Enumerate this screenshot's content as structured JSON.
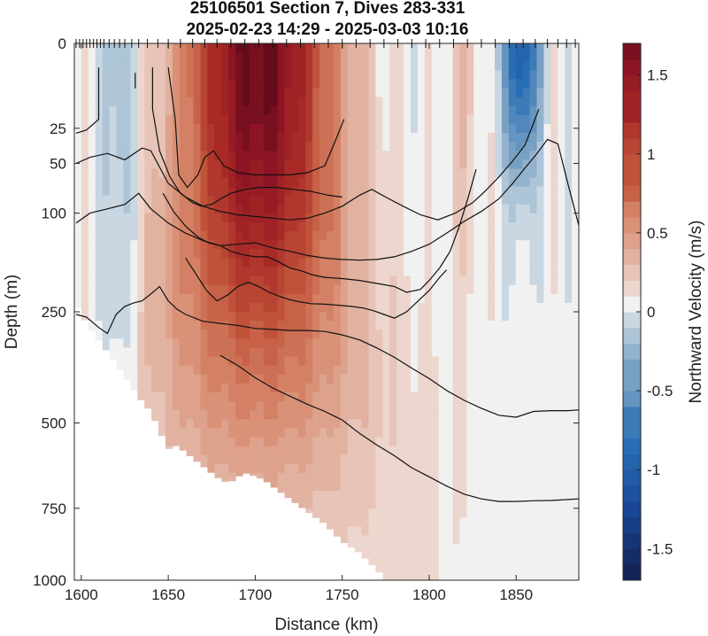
{
  "chart_data": {
    "type": "heatmap",
    "title": "25106501 Section 7, Dives 283-331",
    "subtitle": "2025-02-23 14:29 - 2025-03-03 10:16",
    "xlabel": "Distance (km)",
    "ylabel": "Depth (m)",
    "colorbar_label": "Northward Velocity (m/s)",
    "xlim": [
      1596,
      1886
    ],
    "x_ticks": [
      1600,
      1650,
      1700,
      1750,
      1800,
      1850
    ],
    "x_tick_labels": [
      "1600",
      "1650",
      "1700",
      "1750",
      "1800",
      "1850"
    ],
    "y_ticks": [
      0,
      25,
      50,
      100,
      250,
      500,
      750,
      1000
    ],
    "y_tick_labels": [
      "0",
      "25",
      "50",
      "100",
      "250",
      "500",
      "750",
      "1000"
    ],
    "y_scale": "square-root (reversed, 0 at top)",
    "clim": [
      -1.7,
      1.7
    ],
    "colorbar_ticks": [
      1.5,
      1,
      0.5,
      0,
      -0.5,
      -1,
      -1.5
    ],
    "colorbar_tick_labels": [
      "1.5",
      "1",
      "0.5",
      "0",
      "-0.5",
      "-1",
      "-1.5"
    ],
    "colormap": "blue-white-red diverging",
    "colors": {
      "negative": "#1a3a7a",
      "zero": "#f2f2f2",
      "positive": "#6b0d1e"
    },
    "dive_positions_km": [
      1597,
      1599,
      1601,
      1603,
      1605,
      1607,
      1609,
      1611,
      1613,
      1616,
      1619,
      1622,
      1625,
      1629,
      1633,
      1638,
      1644,
      1650,
      1657,
      1664,
      1671,
      1678,
      1686,
      1694,
      1702,
      1710,
      1718,
      1726,
      1734,
      1742,
      1750,
      1758,
      1766,
      1774,
      1782,
      1790,
      1798,
      1806,
      1814,
      1822,
      1830,
      1838,
      1846,
      1854,
      1861,
      1868,
      1874,
      1879,
      1884
    ],
    "seafloor": {
      "x": [
        1596,
        1600,
        1605,
        1610,
        1615,
        1620,
        1625,
        1630,
        1635,
        1640,
        1645,
        1650,
        1655,
        1660,
        1665,
        1670,
        1675,
        1680,
        1685,
        1690,
        1695,
        1700,
        1705,
        1710,
        1715,
        1720,
        1725,
        1730,
        1735,
        1740,
        1745,
        1750,
        1755,
        1760,
        1765,
        1770,
        1775,
        1780,
        1785,
        1790,
        1795,
        1800,
        1805,
        1810,
        1815,
        1820,
        1825,
        1830,
        1835,
        1840,
        1845,
        1850,
        1855,
        1860,
        1865,
        1870,
        1875,
        1880,
        1886
      ],
      "depth": [
        230,
        255,
        280,
        305,
        330,
        355,
        385,
        415,
        445,
        470,
        520,
        570,
        560,
        580,
        600,
        620,
        640,
        660,
        670,
        650,
        640,
        650,
        660,
        680,
        700,
        720,
        740,
        760,
        780,
        800,
        830,
        860,
        880,
        900,
        930,
        960,
        1000,
        1000,
        1000,
        1000,
        1000,
        1000,
        1000,
        1000,
        1000,
        1000,
        1000,
        1000,
        1000,
        1000,
        1000,
        1000,
        1000,
        1000,
        1000,
        1000,
        1000,
        1000,
        1000
      ]
    },
    "velocity_field": {
      "description": "northward velocity core centred near 1700 km, surface max about 1.7 m/s, decaying with depth; weak negative flow near 1850 km and along the west slope",
      "core_center_km": 1702,
      "core_max": 1.7,
      "negative_center_km": 1853,
      "negative_min": -1.0
    },
    "contours": [
      {
        "x": [
          1597,
          1603,
          1610,
          1610
        ],
        "depth": [
          28,
          26,
          20,
          2
        ]
      },
      {
        "x": [
          1631,
          1631
        ],
        "depth": [
          7,
          3
        ]
      },
      {
        "x": [
          1641,
          1641,
          1645,
          1651,
          1657,
          1664,
          1669,
          1675,
          1680,
          1686,
          1694,
          1702,
          1712,
          1722,
          1732,
          1742,
          1750
        ],
        "depth": [
          2,
          15,
          40,
          62,
          78,
          88,
          92,
          90,
          84,
          78,
          74,
          72,
          72,
          74,
          76,
          80,
          82
        ]
      },
      {
        "x": [
          1650,
          1654,
          1656,
          1661,
          1667,
          1671,
          1676,
          1682,
          1690,
          1700,
          1710,
          1720,
          1730,
          1740,
          1745,
          1751
        ],
        "depth": [
          2,
          20,
          60,
          72,
          60,
          45,
          40,
          52,
          58,
          60,
          60,
          60,
          58,
          52,
          36,
          20
        ]
      },
      {
        "x": [
          1597,
          1605,
          1615,
          1625,
          1635,
          1640,
          1650,
          1660,
          1670,
          1680,
          1690,
          1700,
          1710,
          1720,
          1730,
          1740,
          1750,
          1760,
          1767,
          1775,
          1785,
          1795,
          1805,
          1815,
          1825,
          1832,
          1840,
          1848,
          1855,
          1860,
          1863
        ],
        "depth": [
          50,
          45,
          42,
          47,
          38,
          40,
          68,
          82,
          92,
          98,
          102,
          104,
          106,
          108,
          106,
          100,
          92,
          80,
          74,
          82,
          92,
          102,
          108,
          100,
          88,
          76,
          62,
          48,
          36,
          22,
          15
        ]
      },
      {
        "x": [
          1597,
          1605,
          1615,
          1625,
          1633,
          1640,
          1650,
          1660,
          1670,
          1680,
          1690,
          1700,
          1710,
          1720,
          1730,
          1740,
          1750,
          1760,
          1770,
          1780,
          1790,
          1800,
          1810,
          1820,
          1830,
          1840,
          1848,
          1855,
          1862,
          1868,
          1874,
          1880,
          1886
        ],
        "depth": [
          112,
          100,
          95,
          90,
          78,
          95,
          112,
          125,
          135,
          142,
          140,
          138,
          145,
          150,
          156,
          160,
          162,
          163,
          162,
          158,
          150,
          140,
          125,
          110,
          98,
          84,
          68,
          54,
          42,
          32,
          35,
          70,
          115
        ]
      },
      {
        "x": [
          1647,
          1653,
          1660,
          1667,
          1673,
          1680,
          1686,
          1693,
          1700,
          1707,
          1713,
          1720,
          1727,
          1733,
          1740,
          1750,
          1760,
          1770,
          1780,
          1787,
          1795,
          1800,
          1806,
          1812,
          1817,
          1822,
          1827
        ],
        "depth": [
          78,
          98,
          116,
          130,
          138,
          142,
          150,
          155,
          158,
          158,
          165,
          175,
          180,
          186,
          190,
          192,
          195,
          200,
          205,
          215,
          210,
          195,
          175,
          150,
          118,
          85,
          55
        ]
      },
      {
        "x": [
          1660,
          1666,
          1672,
          1678,
          1684,
          1690,
          1696,
          1702,
          1708,
          1714,
          1720,
          1726,
          1732,
          1740,
          1748,
          1755,
          1762,
          1768,
          1774,
          1780,
          1787,
          1793,
          1800,
          1806,
          1810
        ],
        "depth": [
          160,
          185,
          212,
          230,
          220,
          205,
          198,
          205,
          215,
          222,
          228,
          232,
          235,
          236,
          238,
          240,
          243,
          248,
          255,
          262,
          250,
          232,
          212,
          190,
          178
        ]
      },
      {
        "x": [
          1597,
          1603,
          1610,
          1615,
          1620,
          1625,
          1630,
          1635,
          1640,
          1645,
          1650,
          1655,
          1660,
          1670,
          1680,
          1690,
          1700,
          1710,
          1720,
          1730,
          1740,
          1750,
          1760,
          1770,
          1780,
          1790,
          1800,
          1810,
          1820,
          1830,
          1840,
          1850,
          1860,
          1870,
          1880,
          1886
        ],
        "depth": [
          255,
          260,
          280,
          292,
          255,
          240,
          234,
          230,
          218,
          205,
          230,
          245,
          255,
          268,
          272,
          276,
          282,
          284,
          286,
          286,
          288,
          295,
          305,
          322,
          342,
          366,
          390,
          418,
          442,
          462,
          480,
          485,
          470,
          468,
          468,
          466
        ]
      },
      {
        "x": [
          1680,
          1690,
          1700,
          1710,
          1720,
          1730,
          1740,
          1750,
          1760,
          1770,
          1780,
          1790,
          1800,
          1810,
          1820,
          1830,
          1840,
          1850,
          1860,
          1870,
          1880,
          1886
        ],
        "depth": [
          338,
          360,
          388,
          412,
          432,
          452,
          470,
          492,
          528,
          560,
          590,
          625,
          652,
          680,
          705,
          720,
          728,
          728,
          726,
          725,
          722,
          720
        ]
      }
    ]
  }
}
